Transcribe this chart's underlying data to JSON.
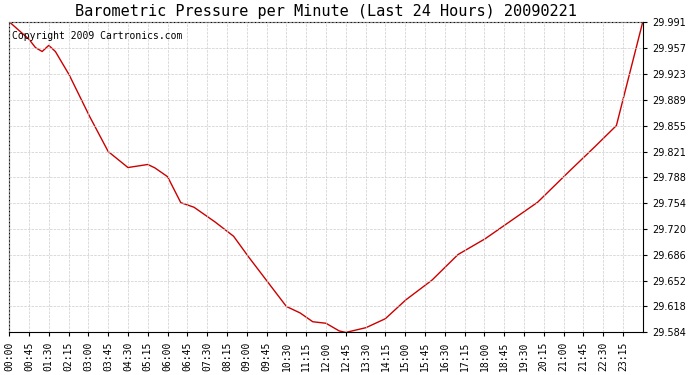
{
  "title": "Barometric Pressure per Minute (Last 24 Hours) 20090221",
  "copyright_text": "Copyright 2009 Cartronics.com",
  "line_color": "#cc0000",
  "background_color": "#ffffff",
  "grid_color": "#cccccc",
  "text_color": "#000000",
  "ylim": [
    29.584,
    29.991
  ],
  "yticks": [
    29.584,
    29.618,
    29.652,
    29.686,
    29.72,
    29.754,
    29.788,
    29.821,
    29.855,
    29.889,
    29.923,
    29.957,
    29.991
  ],
  "xtick_labels": [
    "00:00",
    "00:45",
    "01:30",
    "02:15",
    "03:00",
    "03:45",
    "04:30",
    "05:15",
    "06:00",
    "06:45",
    "07:30",
    "08:15",
    "09:00",
    "09:45",
    "10:30",
    "11:15",
    "12:00",
    "12:45",
    "13:30",
    "14:15",
    "15:00",
    "15:45",
    "16:30",
    "17:15",
    "18:00",
    "18:45",
    "19:30",
    "20:15",
    "21:00",
    "21:45",
    "22:30",
    "23:15"
  ],
  "title_fontsize": 11,
  "tick_fontsize": 7,
  "copyright_fontsize": 7,
  "key_x": [
    0,
    45,
    60,
    75,
    90,
    105,
    135,
    180,
    225,
    270,
    315,
    330,
    360,
    390,
    420,
    465,
    510,
    540,
    585,
    630,
    660,
    690,
    720,
    750,
    765,
    780,
    810,
    855,
    900,
    960,
    1020,
    1080,
    1140,
    1200,
    1260,
    1320,
    1380,
    1440
  ],
  "key_y": [
    29.991,
    29.968,
    29.957,
    29.952,
    29.96,
    29.952,
    29.923,
    29.87,
    29.821,
    29.8,
    29.804,
    29.8,
    29.788,
    29.754,
    29.748,
    29.73,
    29.71,
    29.686,
    29.652,
    29.618,
    29.61,
    29.598,
    29.596,
    29.586,
    29.584,
    29.586,
    29.59,
    29.602,
    29.626,
    29.652,
    29.686,
    29.706,
    29.73,
    29.754,
    29.788,
    29.821,
    29.855,
    29.991
  ]
}
